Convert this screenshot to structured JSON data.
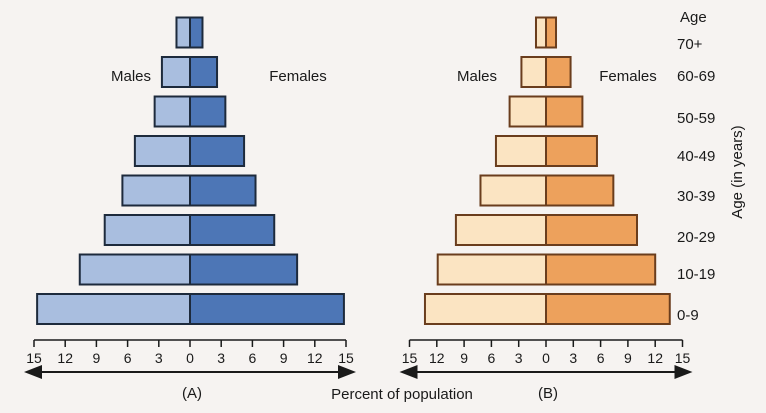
{
  "chart_data": [
    {
      "type": "bar",
      "subtype": "population-pyramid",
      "title": "(A)",
      "categories": [
        "0-9",
        "10-19",
        "20-29",
        "30-39",
        "40-49",
        "50-59",
        "60-69",
        "70+"
      ],
      "series": [
        {
          "name": "Males",
          "values": [
            14.7,
            10.6,
            8.2,
            6.5,
            5.3,
            3.4,
            2.7,
            1.3
          ]
        },
        {
          "name": "Females",
          "values": [
            14.8,
            10.3,
            8.1,
            6.3,
            5.2,
            3.4,
            2.6,
            1.2
          ]
        }
      ],
      "colors": {
        "males": "#a9bedf",
        "females": "#4d76b6",
        "outline": "#1d2a3c"
      },
      "xlim": [
        -15,
        15
      ],
      "xticks": [
        "15",
        "12",
        "9",
        "6",
        "3",
        "0",
        "3",
        "6",
        "9",
        "12",
        "15"
      ],
      "males_label": "Males",
      "females_label": "Females"
    },
    {
      "type": "bar",
      "subtype": "population-pyramid",
      "title": "(B)",
      "categories": [
        "0-9",
        "10-19",
        "20-29",
        "30-39",
        "40-49",
        "50-59",
        "60-69",
        "70+"
      ],
      "series": [
        {
          "name": "Males",
          "values": [
            13.3,
            11.9,
            9.9,
            7.2,
            5.5,
            4.0,
            2.7,
            1.1
          ]
        },
        {
          "name": "Females",
          "values": [
            13.6,
            12.0,
            10.0,
            7.4,
            5.6,
            4.0,
            2.7,
            1.1
          ]
        }
      ],
      "colors": {
        "males": "#fbe4c2",
        "females": "#eda15c",
        "outline": "#6a3d1d"
      },
      "xlim": [
        -15,
        15
      ],
      "xticks": [
        "15",
        "12",
        "9",
        "6",
        "3",
        "0",
        "3",
        "6",
        "9",
        "12",
        "15"
      ],
      "males_label": "Males",
      "females_label": "Females"
    }
  ],
  "age_header": "Age",
  "age_axis_label": "Age (in years)",
  "age_labels": [
    "70+",
    "60-69",
    "50-59",
    "40-49",
    "30-39",
    "20-29",
    "10-19",
    "0-9"
  ],
  "xlabel": "Percent of population"
}
